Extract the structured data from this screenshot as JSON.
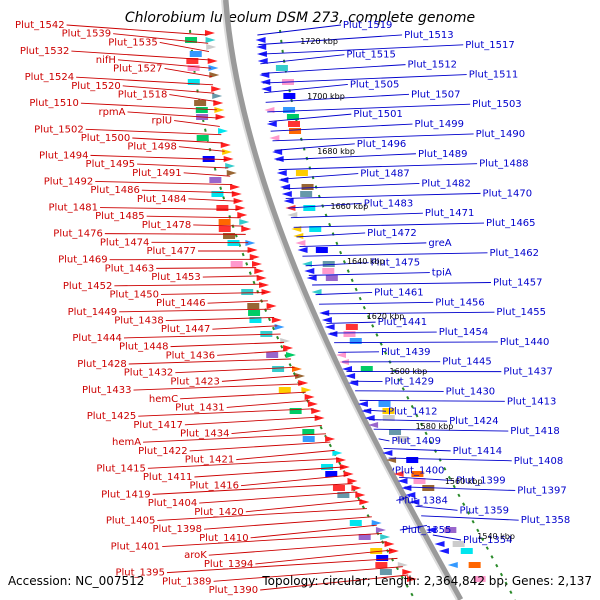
{
  "title": "Chlorobium luteolum DSM 273, complete genome",
  "footer": {
    "accession": "Accession: NC_007512",
    "topology": "Topology: circular; Length: 2,364,842 bp; Genes: 2,137"
  },
  "colors": {
    "left_labels": "#cc0000",
    "right_labels": "#0000cc",
    "backbone": "#999999",
    "tick": "#2a8a2a"
  },
  "kbp_marks": [
    "1720 kbp",
    "1700 kbp",
    "1680 kbp",
    "1660 kbp",
    "1640 kbp",
    "1620 kbp",
    "1600 kbp",
    "1580 kbp",
    "1560 kbp",
    "1540 kbp"
  ],
  "left_labels": [
    "Plut_1542",
    "Plut_1539",
    "Plut_1535",
    "Plut_1532",
    "nifH",
    "Plut_1527",
    "Plut_1524",
    "Plut_1520",
    "Plut_1518",
    "Plut_1510",
    "rpmA",
    "rplU",
    "Plut_1502",
    "Plut_1500",
    "Plut_1498",
    "Plut_1494",
    "Plut_1495",
    "Plut_1491",
    "Plut_1492",
    "Plut_1486",
    "Plut_1484",
    "Plut_1481",
    "Plut_1485",
    "Plut_1478",
    "Plut_1476",
    "Plut_1474",
    "Plut_1477",
    "Plut_1469",
    "Plut_1463",
    "Plut_1453",
    "Plut_1452",
    "Plut_1450",
    "Plut_1446",
    "Plut_1449",
    "Plut_1438",
    "Plut_1447",
    "Plut_1444",
    "Plut_1448",
    "Plut_1436",
    "Plut_1428",
    "Plut_1432",
    "Plut_1423",
    "Plut_1433",
    "hemC",
    "Plut_1431",
    "Plut_1425",
    "Plut_1417",
    "Plut_1434",
    "hemA",
    "Plut_1422",
    "Plut_1421",
    "Plut_1415",
    "Plut_1411",
    "Plut_1416",
    "Plut_1419",
    "Plut_1404",
    "Plut_1420",
    "Plut_1405",
    "Plut_1398",
    "Plut_1410",
    "Plut_1401",
    "aroK",
    "Plut_1394",
    "Plut_1395",
    "Plut_1389",
    "Plut_1390"
  ],
  "right_labels": [
    "Plut_1519",
    "Plut_1513",
    "Plut_1517",
    "Plut_1515",
    "Plut_1512",
    "Plut_1511",
    "Plut_1505",
    "Plut_1507",
    "Plut_1503",
    "Plut_1501",
    "Plut_1499",
    "Plut_1490",
    "Plut_1496",
    "Plut_1489",
    "Plut_1488",
    "Plut_1487",
    "Plut_1482",
    "Plut_1470",
    "Plut_1483",
    "Plut_1471",
    "Plut_1465",
    "Plut_1472",
    "greA",
    "Plut_1462",
    "Plut_1475",
    "tpiA",
    "Plut_1457",
    "Plut_1461",
    "Plut_1456",
    "Plut_1455",
    "Plut_1441",
    "Plut_1454",
    "Plut_1440",
    "Plut_1439",
    "Plut_1445",
    "Plut_1437",
    "Plut_1429",
    "Plut_1430",
    "Plut_1413",
    "Plut_1412",
    "Plut_1424",
    "Plut_1418",
    "Plut_1409",
    "Plut_1414",
    "Plut_1408",
    "Plut_1400",
    "Plut_1399",
    "Plut_1397",
    "Plut_1384",
    "Plut_1359",
    "Plut_1358",
    "Plut_1355",
    "Plut_1354"
  ]
}
